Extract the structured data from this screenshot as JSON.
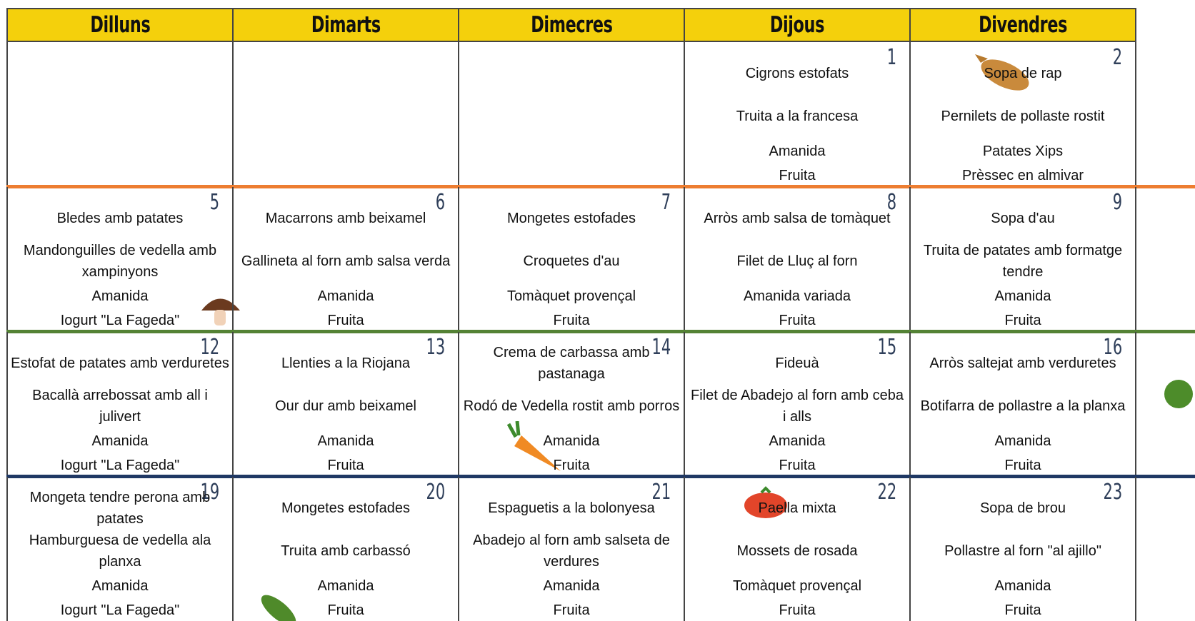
{
  "header": {
    "days": [
      "Dilluns",
      "Dimarts",
      "Dimecres",
      "Dijous",
      "Divendres"
    ]
  },
  "weeks": [
    [
      {
        "day": null,
        "dishes": []
      },
      {
        "day": null,
        "dishes": []
      },
      {
        "day": null,
        "dishes": []
      },
      {
        "day": 1,
        "dishes": [
          "Cigrons estofats",
          "Truita a la francesa",
          "Amanida",
          "Fruita"
        ]
      },
      {
        "day": 2,
        "dishes": [
          "Sopa de rap",
          "Pernilets de pollaste rostit",
          "Patates Xips",
          "Prèssec en almivar"
        ]
      }
    ],
    [
      {
        "day": 5,
        "dishes": [
          "Bledes amb patates",
          "Mandonguilles de vedella amb xampinyons",
          "Amanida",
          "Iogurt \"La Fageda\""
        ]
      },
      {
        "day": 6,
        "dishes": [
          "Macarrons amb beixamel",
          "Gallineta al forn amb salsa verda",
          "Amanida",
          "Fruita"
        ]
      },
      {
        "day": 7,
        "dishes": [
          "Mongetes estofades",
          "Croquetes d'au",
          "Tomàquet provençal",
          "Fruita"
        ]
      },
      {
        "day": 8,
        "dishes": [
          "Arròs amb salsa de tomàquet",
          "Filet de Lluç al forn",
          "Amanida variada",
          "Fruita"
        ]
      },
      {
        "day": 9,
        "dishes": [
          "Sopa d'au",
          "Truita de patates amb  formatge tendre",
          "Amanida",
          "Fruita"
        ]
      }
    ],
    [
      {
        "day": 12,
        "dishes": [
          "Estofat de patates amb verduretes",
          "Bacallà arrebossat amb all i julivert",
          "Amanida",
          "Iogurt \"La Fageda\""
        ]
      },
      {
        "day": 13,
        "dishes": [
          "Llenties a la Riojana",
          "Our dur amb beixamel",
          "Amanida",
          "Fruita"
        ]
      },
      {
        "day": 14,
        "dishes": [
          "Crema de carbassa amb pastanaga",
          "Rodó de Vedella rostit amb porros",
          "Amanida",
          "Fruita"
        ]
      },
      {
        "day": 15,
        "dishes": [
          "Fideuà",
          "Filet de Abadejo al forn amb ceba i alls",
          "Amanida",
          "Fruita"
        ]
      },
      {
        "day": 16,
        "dishes": [
          "Arròs saltejat amb verduretes",
          "Botifarra de pollastre a la planxa",
          "Amanida",
          "Fruita"
        ]
      }
    ],
    [
      {
        "day": 19,
        "dishes": [
          "Mongeta tendre perona amb patates",
          "Hamburguesa de vedella ala planxa",
          "Amanida",
          "Iogurt \"La Fageda\""
        ]
      },
      {
        "day": 20,
        "dishes": [
          "Mongetes estofades",
          "Truita amb carbassó",
          "Amanida",
          "Fruita"
        ]
      },
      {
        "day": 21,
        "dishes": [
          "Espaguetis a la bolonyesa",
          "Abadejo al forn amb salseta de verdures",
          "Amanida",
          "Fruita"
        ]
      },
      {
        "day": 22,
        "dishes": [
          "Paella mixta",
          "Mossets de rosada",
          "Tomàquet provençal",
          "Fruita"
        ]
      },
      {
        "day": 23,
        "dishes": [
          "Sopa de brou",
          "Pollastre al forn \"al ajillo\"",
          "Amanida",
          "Fruita"
        ]
      }
    ]
  ]
}
